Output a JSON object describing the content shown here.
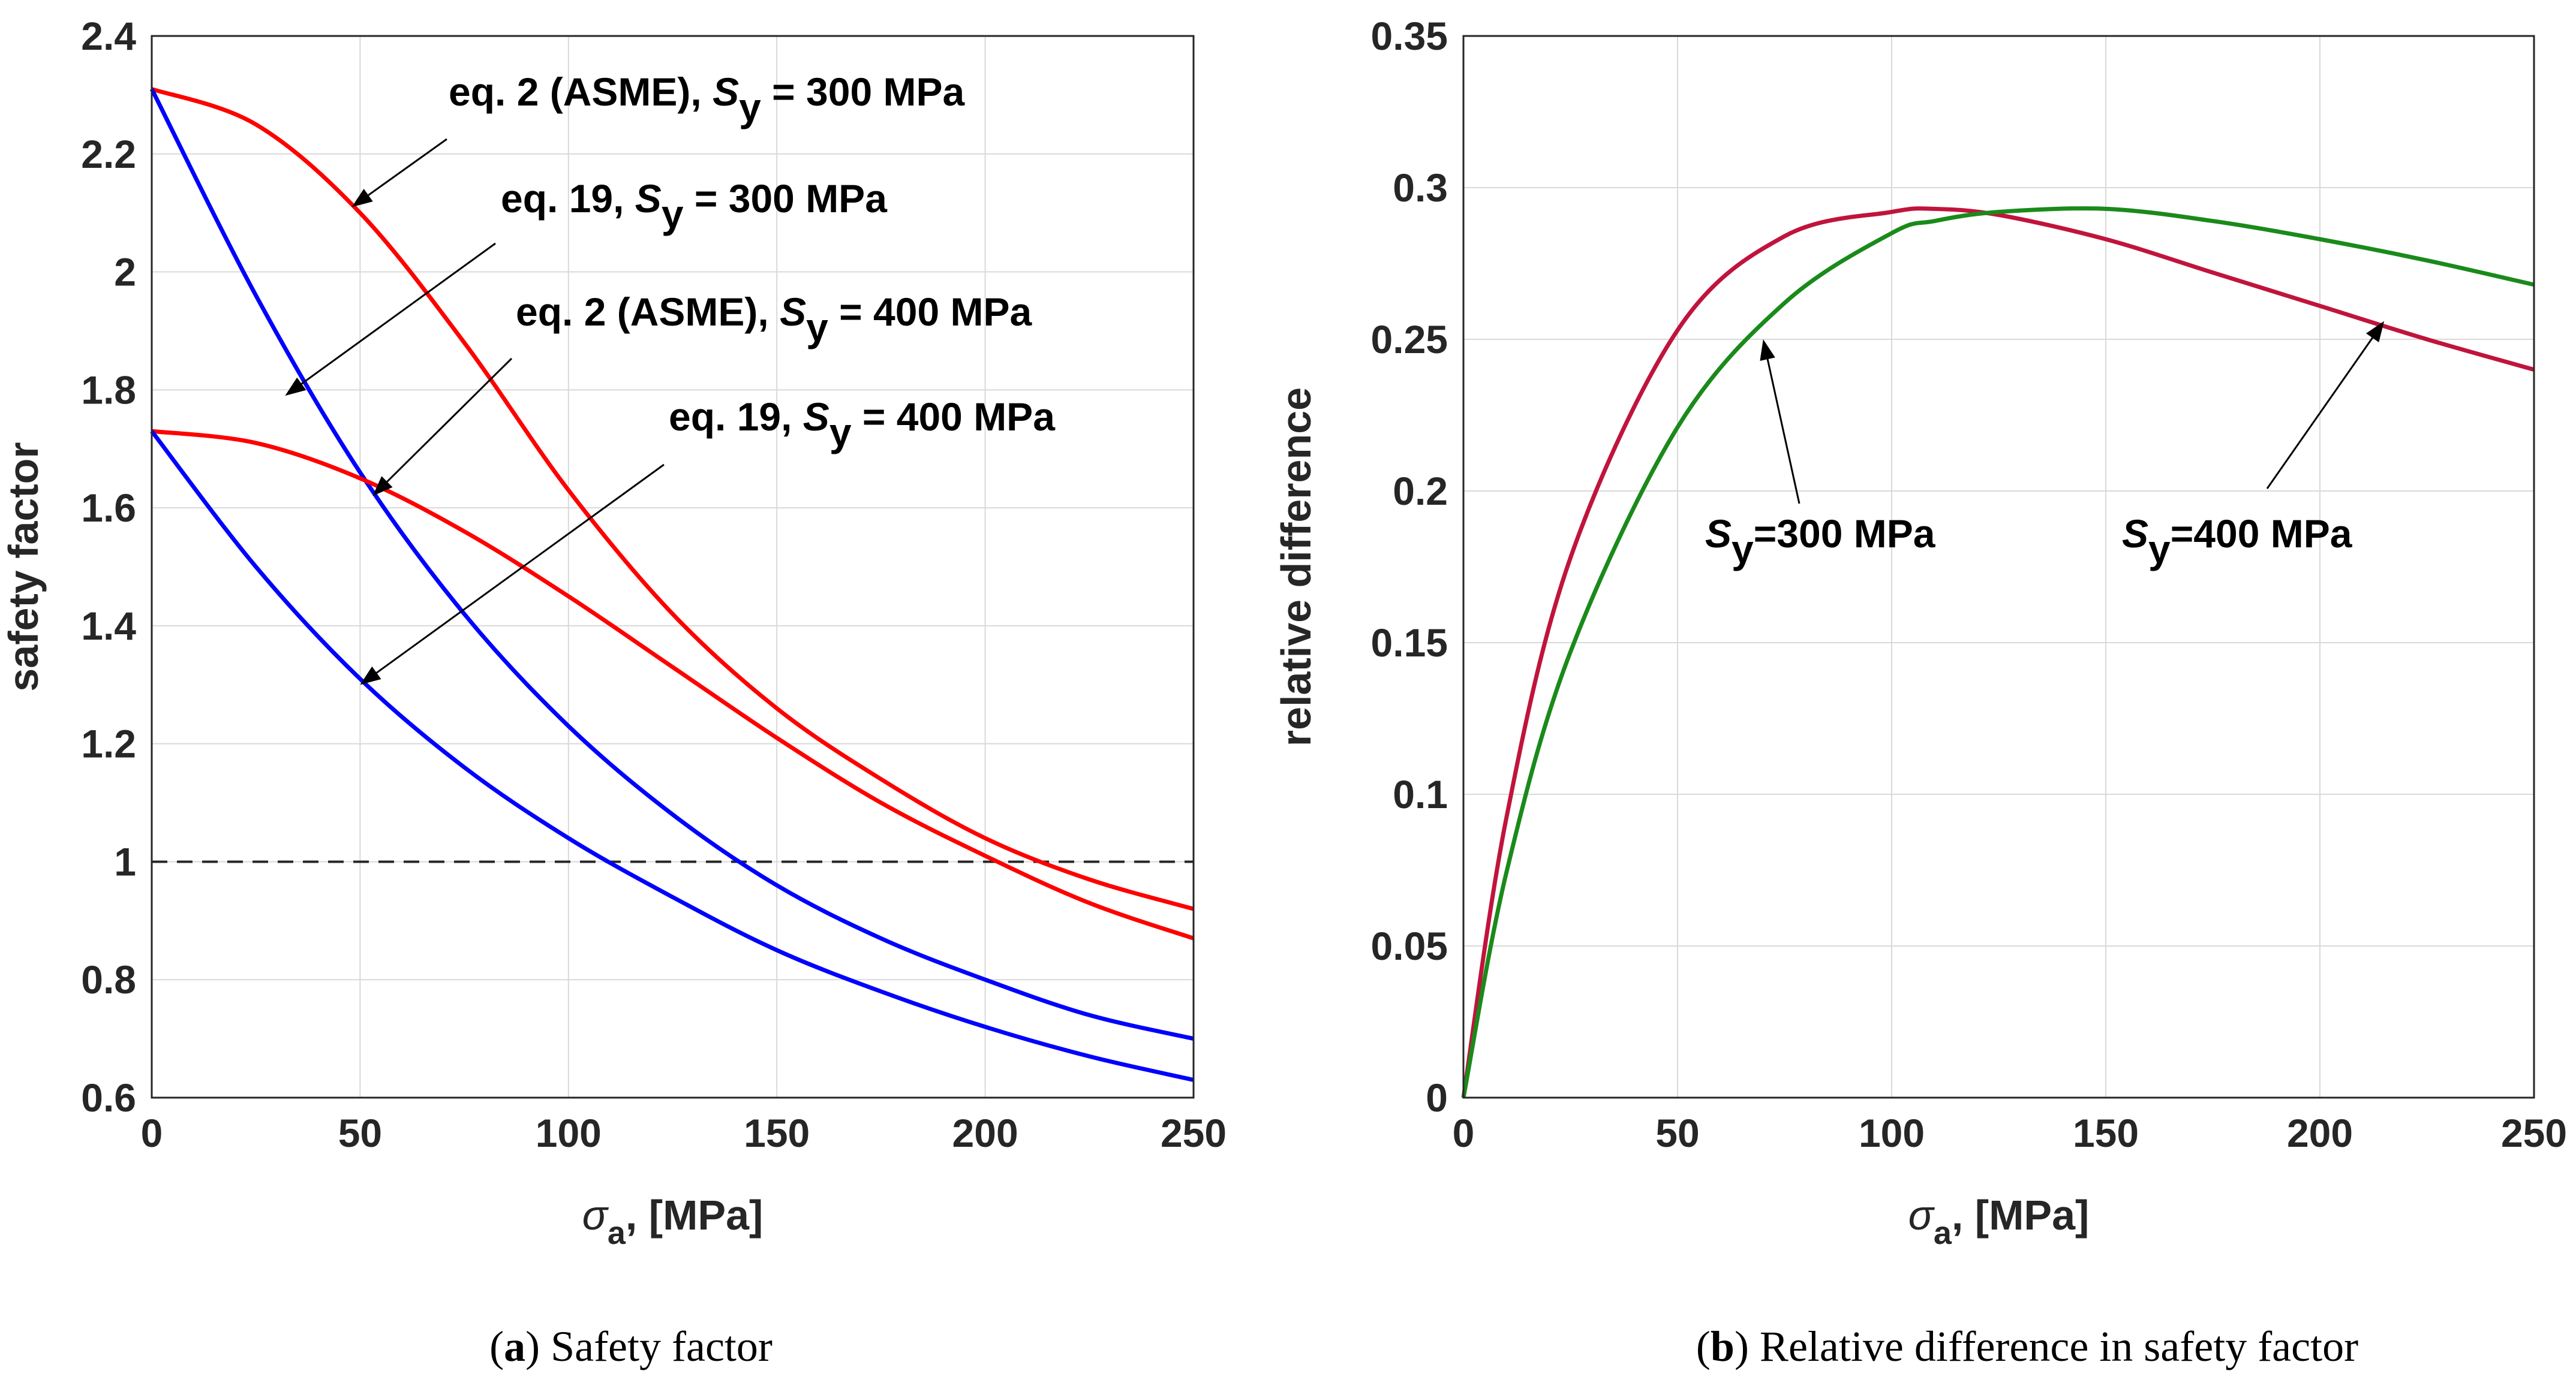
{
  "chart_data": [
    {
      "type": "line",
      "panel": "a",
      "caption_letter": "a",
      "caption_text": ") Safety factor",
      "xlabel_symbol": "σ",
      "xlabel_sub": "a",
      "xlabel_unit": ", [MPa]",
      "ylabel": "safety factor",
      "xlim": [
        0,
        250
      ],
      "ylim": [
        0.6,
        2.4
      ],
      "xticks": [
        "0",
        "50",
        "100",
        "150",
        "200",
        "250"
      ],
      "yticks": [
        "0.6",
        "0.8",
        "1",
        "1.2",
        "1.4",
        "1.6",
        "1.8",
        "2",
        "2.2",
        "2.4"
      ],
      "grid": true,
      "reference_line": {
        "y": 1,
        "style": "dashed",
        "color": "#262626"
      },
      "x": [
        0,
        25,
        50,
        75,
        100,
        125,
        150,
        175,
        200,
        225,
        250
      ],
      "series": [
        {
          "name": "eq. 2 (ASME), S_y = 300 MPa",
          "color": "#ff0000",
          "values": [
            2.31,
            2.25,
            2.1,
            1.88,
            1.63,
            1.42,
            1.26,
            1.14,
            1.04,
            0.97,
            0.92
          ]
        },
        {
          "name": "eq. 19, S_y = 300 MPa",
          "color": "#0000ff",
          "values": [
            2.31,
            1.96,
            1.66,
            1.42,
            1.23,
            1.08,
            0.96,
            0.87,
            0.8,
            0.74,
            0.7
          ]
        },
        {
          "name": "eq. 2 (ASME), S_y = 400 MPa",
          "color": "#ff0000",
          "values": [
            1.73,
            1.71,
            1.65,
            1.56,
            1.45,
            1.33,
            1.21,
            1.1,
            1.01,
            0.93,
            0.87
          ]
        },
        {
          "name": "eq. 19, S_y = 400 MPa",
          "color": "#0000ff",
          "values": [
            1.73,
            1.5,
            1.31,
            1.16,
            1.04,
            0.94,
            0.85,
            0.78,
            0.72,
            0.67,
            0.63
          ]
        }
      ],
      "annotations": [
        {
          "pre": "eq. 2 (ASME), ",
          "sym": "S",
          "sub": "y",
          "post": " = 300 MPa",
          "arrow_to": [
            48,
            2.11
          ]
        },
        {
          "pre": "eq. 19, ",
          "sym": "S",
          "sub": "y",
          "post": " = 300 MPa",
          "arrow_to": [
            32,
            1.79
          ]
        },
        {
          "pre": "eq. 2 (ASME), ",
          "sym": "S",
          "sub": "y",
          "post": " = 400 MPa",
          "arrow_to": [
            53,
            1.62
          ]
        },
        {
          "pre": "eq. 19, ",
          "sym": "S",
          "sub": "y",
          "post": " = 400 MPa",
          "arrow_to": [
            50,
            1.3
          ]
        }
      ]
    },
    {
      "type": "line",
      "panel": "b",
      "caption_letter": "b",
      "caption_text": ") Relative difference in safety factor",
      "xlabel_symbol": "σ",
      "xlabel_sub": "a",
      "xlabel_unit": ", [MPa]",
      "ylabel": "relative difference",
      "xlim": [
        0,
        250
      ],
      "ylim": [
        0,
        0.35
      ],
      "xticks": [
        "0",
        "50",
        "100",
        "150",
        "200",
        "250"
      ],
      "yticks": [
        "0",
        "0.05",
        "0.1",
        "0.15",
        "0.2",
        "0.25",
        "0.3",
        "0.35"
      ],
      "grid": true,
      "x": [
        0,
        10,
        25,
        50,
        75,
        100,
        110,
        125,
        150,
        175,
        200,
        225,
        250
      ],
      "series": [
        {
          "name": "S_y=300 MPa",
          "color": "#c0143c",
          "values": [
            0,
            0.092,
            0.178,
            0.253,
            0.284,
            0.292,
            0.293,
            0.291,
            0.283,
            0.272,
            0.261,
            0.25,
            0.24
          ]
        },
        {
          "name": "S_y=400 MPa",
          "color": "#1a8a1a",
          "values": [
            0,
            0.074,
            0.147,
            0.221,
            0.262,
            0.285,
            0.289,
            0.292,
            0.293,
            0.289,
            0.283,
            0.276,
            0.268
          ]
        }
      ],
      "annotations": [
        {
          "sym": "S",
          "sub": "y",
          "post": "=300 MPa",
          "arrow_to": [
            70,
            0.25
          ]
        },
        {
          "sym": "S",
          "sub": "y",
          "post": "=400 MPa",
          "arrow_to": [
            215,
            0.256
          ]
        }
      ]
    }
  ]
}
